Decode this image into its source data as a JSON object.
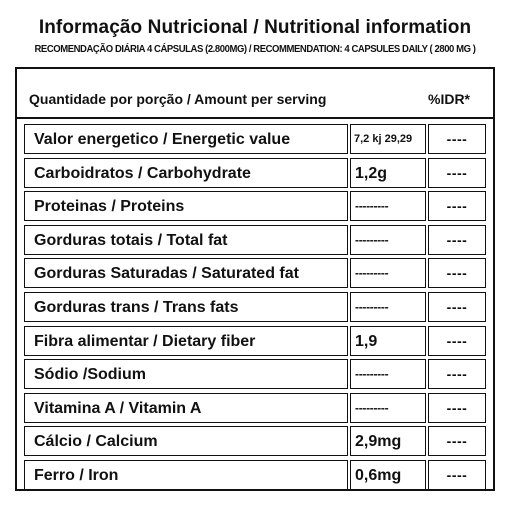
{
  "title": "Informação Nutricional /  Nutritional information",
  "subtitle": "RECOMENDAÇÃO DIÁRIA 4 CÁPSULAS (2.800MG) / RECOMMENDATION: 4 CAPSULES DAILY ( 2800 MG )",
  "table": {
    "header_label": "Quantidade por porção / Amount per serving",
    "header_idr": "%IDR*",
    "rows": [
      {
        "label": "Valor energetico  / Energetic value",
        "value": "7,2 kj 29,29",
        "idr": "----"
      },
      {
        "label": "Carboidratos / Carbohydrate",
        "value": "1,2g",
        "idr": "----"
      },
      {
        "label": "Proteinas / Proteins",
        "value": "---------",
        "idr": "----"
      },
      {
        "label": "Gorduras totais / Total fat",
        "value": "---------",
        "idr": "----"
      },
      {
        "label": "Gorduras Saturadas / Saturated fat",
        "value": "---------",
        "idr": "----"
      },
      {
        "label": "Gorduras trans / Trans fats",
        "value": "---------",
        "idr": "----"
      },
      {
        "label": "Fibra alimentar / Dietary fiber",
        "value": "1,9",
        "idr": "----"
      },
      {
        "label": "Sódio /Sodium",
        "value": "---------",
        "idr": "----"
      },
      {
        "label": "Vitamina A / Vitamin A",
        "value": "---------",
        "idr": "----"
      },
      {
        "label": "Cálcio / Calcium",
        "value": "2,9mg",
        "idr": "----"
      },
      {
        "label": "Ferro / Iron",
        "value": "0,6mg",
        "idr": "----"
      }
    ]
  }
}
